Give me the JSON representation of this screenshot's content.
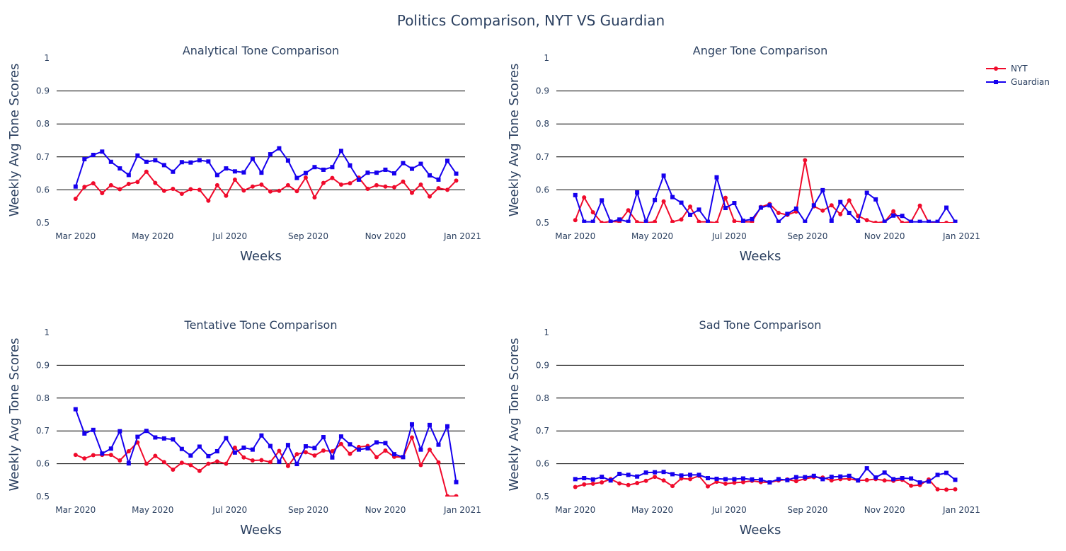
{
  "title": "Politics Comparison, NYT VS Guardian",
  "legend": [
    {
      "name": "NYT",
      "color": "#f00a2b",
      "marker": "circle"
    },
    {
      "name": "Guardian",
      "color": "#1600ee",
      "marker": "square"
    }
  ],
  "chart_data": [
    {
      "type": "line",
      "title": "Analytical Tone Comparison",
      "xlabel": "Weeks",
      "ylabel": "Weekly Avg Tone Scores",
      "ylim": [
        0.5,
        1
      ],
      "yticks": [
        "0.5",
        "0.6",
        "0.7",
        "0.8",
        "0.9",
        "1"
      ],
      "xticks": [
        "Mar 2020",
        "May 2020",
        "Jul 2020",
        "Sep 2020",
        "Nov 2020",
        "Jan 2021"
      ],
      "x": [
        "2020-03-01",
        "2020-03-08",
        "2020-03-15",
        "2020-03-22",
        "2020-03-29",
        "2020-04-05",
        "2020-04-12",
        "2020-04-19",
        "2020-04-26",
        "2020-05-03",
        "2020-05-10",
        "2020-05-17",
        "2020-05-24",
        "2020-05-31",
        "2020-06-07",
        "2020-06-14",
        "2020-06-21",
        "2020-06-28",
        "2020-07-05",
        "2020-07-12",
        "2020-07-19",
        "2020-07-26",
        "2020-08-02",
        "2020-08-09",
        "2020-08-16",
        "2020-08-23",
        "2020-08-30",
        "2020-09-06",
        "2020-09-13",
        "2020-09-20",
        "2020-09-27",
        "2020-10-04",
        "2020-10-11",
        "2020-10-18",
        "2020-10-25",
        "2020-11-01",
        "2020-11-08",
        "2020-11-15",
        "2020-11-22",
        "2020-11-29",
        "2020-12-06",
        "2020-12-13",
        "2020-12-20",
        "2020-12-27"
      ],
      "series": [
        {
          "name": "NYT",
          "values": [
            0.573,
            0.609,
            0.62,
            0.59,
            0.614,
            0.602,
            0.618,
            0.624,
            0.655,
            0.621,
            0.597,
            0.603,
            0.588,
            0.602,
            0.6,
            0.567,
            0.614,
            0.582,
            0.631,
            0.598,
            0.61,
            0.616,
            0.595,
            0.597,
            0.614,
            0.596,
            0.637,
            0.577,
            0.621,
            0.636,
            0.616,
            0.62,
            0.637,
            0.603,
            0.614,
            0.61,
            0.608,
            0.625,
            0.591,
            0.616,
            0.58,
            0.605,
            0.6,
            0.628
          ]
        },
        {
          "name": "Guardian",
          "values": [
            0.61,
            0.693,
            0.706,
            0.716,
            0.685,
            0.665,
            0.645,
            0.704,
            0.685,
            0.69,
            0.675,
            0.655,
            0.684,
            0.683,
            0.69,
            0.686,
            0.645,
            0.665,
            0.656,
            0.653,
            0.694,
            0.652,
            0.708,
            0.726,
            0.689,
            0.636,
            0.651,
            0.669,
            0.661,
            0.669,
            0.718,
            0.674,
            0.631,
            0.652,
            0.652,
            0.661,
            0.65,
            0.681,
            0.664,
            0.679,
            0.644,
            0.631,
            0.688,
            0.649
          ]
        }
      ]
    },
    {
      "type": "line",
      "title": "Anger Tone Comparison",
      "xlabel": "Weeks",
      "ylabel": "Weekly Avg Tone Scores",
      "ylim": [
        0.5,
        1
      ],
      "yticks": [
        "0.5",
        "0.6",
        "0.7",
        "0.8",
        "0.9",
        "1"
      ],
      "xticks": [
        "Mar 2020",
        "May 2020",
        "Jul 2020",
        "Sep 2020",
        "Nov 2020",
        "Jan 2021"
      ],
      "x": [
        "2020-03-01",
        "2020-03-08",
        "2020-03-15",
        "2020-03-22",
        "2020-03-29",
        "2020-04-05",
        "2020-04-12",
        "2020-04-19",
        "2020-04-26",
        "2020-05-03",
        "2020-05-10",
        "2020-05-17",
        "2020-05-24",
        "2020-05-31",
        "2020-06-07",
        "2020-06-14",
        "2020-06-21",
        "2020-06-28",
        "2020-07-05",
        "2020-07-12",
        "2020-07-19",
        "2020-07-26",
        "2020-08-02",
        "2020-08-09",
        "2020-08-16",
        "2020-08-23",
        "2020-08-30",
        "2020-09-06",
        "2020-09-13",
        "2020-09-20",
        "2020-09-27",
        "2020-10-04",
        "2020-10-11",
        "2020-10-18",
        "2020-10-25",
        "2020-11-01",
        "2020-11-08",
        "2020-11-15",
        "2020-11-22",
        "2020-11-29",
        "2020-12-06",
        "2020-12-13",
        "2020-12-20",
        "2020-12-27"
      ],
      "series": [
        {
          "name": "NYT",
          "values": [
            0.508,
            0.577,
            0.532,
            0.5,
            0.504,
            0.503,
            0.538,
            0.502,
            0.5,
            0.503,
            0.565,
            0.503,
            0.51,
            0.549,
            0.503,
            0.503,
            0.5,
            0.576,
            0.505,
            0.503,
            0.503,
            0.548,
            0.557,
            0.53,
            0.524,
            0.534,
            0.69,
            0.55,
            0.537,
            0.553,
            0.526,
            0.568,
            0.521,
            0.508,
            0.5,
            0.503,
            0.535,
            0.5,
            0.503,
            0.552,
            0.5,
            0.5,
            0.5,
            0.5
          ]
        },
        {
          "name": "Guardian",
          "values": [
            0.584,
            0.503,
            0.503,
            0.568,
            0.503,
            0.51,
            0.503,
            0.592,
            0.503,
            0.569,
            0.643,
            0.578,
            0.561,
            0.524,
            0.54,
            0.503,
            0.638,
            0.545,
            0.56,
            0.506,
            0.511,
            0.546,
            0.553,
            0.503,
            0.527,
            0.543,
            0.503,
            0.553,
            0.599,
            0.506,
            0.563,
            0.53,
            0.503,
            0.591,
            0.571,
            0.503,
            0.522,
            0.521,
            0.503,
            0.503,
            0.503,
            0.503,
            0.546,
            0.503
          ]
        }
      ]
    },
    {
      "type": "line",
      "title": "Tentative Tone Comparison",
      "xlabel": "Weeks",
      "ylabel": "Weekly Avg Tone Scores",
      "ylim": [
        0.5,
        1
      ],
      "yticks": [
        "0.5",
        "0.6",
        "0.7",
        "0.8",
        "0.9",
        "1"
      ],
      "xticks": [
        "Mar 2020",
        "May 2020",
        "Jul 2020",
        "Sep 2020",
        "Nov 2020",
        "Jan 2021"
      ],
      "x": [
        "2020-03-01",
        "2020-03-08",
        "2020-03-15",
        "2020-03-22",
        "2020-03-29",
        "2020-04-05",
        "2020-04-12",
        "2020-04-19",
        "2020-04-26",
        "2020-05-03",
        "2020-05-10",
        "2020-05-17",
        "2020-05-24",
        "2020-05-31",
        "2020-06-07",
        "2020-06-14",
        "2020-06-21",
        "2020-06-28",
        "2020-07-05",
        "2020-07-12",
        "2020-07-19",
        "2020-07-26",
        "2020-08-02",
        "2020-08-09",
        "2020-08-16",
        "2020-08-23",
        "2020-08-30",
        "2020-09-06",
        "2020-09-13",
        "2020-09-20",
        "2020-09-27",
        "2020-10-04",
        "2020-10-11",
        "2020-10-18",
        "2020-10-25",
        "2020-11-01",
        "2020-11-08",
        "2020-11-15",
        "2020-11-22",
        "2020-11-29",
        "2020-12-06",
        "2020-12-13",
        "2020-12-20",
        "2020-12-27"
      ],
      "series": [
        {
          "name": "NYT",
          "values": [
            0.627,
            0.616,
            0.626,
            0.627,
            0.627,
            0.61,
            0.638,
            0.665,
            0.6,
            0.624,
            0.605,
            0.582,
            0.603,
            0.596,
            0.578,
            0.6,
            0.607,
            0.6,
            0.649,
            0.619,
            0.61,
            0.611,
            0.605,
            0.639,
            0.593,
            0.629,
            0.635,
            0.625,
            0.64,
            0.638,
            0.66,
            0.63,
            0.651,
            0.654,
            0.62,
            0.64,
            0.621,
            0.62,
            0.68,
            0.596,
            0.643,
            0.604,
            0.501,
            0.501
          ]
        },
        {
          "name": "Guardian",
          "values": [
            0.766,
            0.692,
            0.703,
            0.631,
            0.646,
            0.699,
            0.601,
            0.682,
            0.7,
            0.68,
            0.677,
            0.674,
            0.645,
            0.625,
            0.652,
            0.623,
            0.638,
            0.678,
            0.634,
            0.649,
            0.643,
            0.686,
            0.654,
            0.606,
            0.657,
            0.599,
            0.653,
            0.648,
            0.681,
            0.619,
            0.683,
            0.659,
            0.643,
            0.647,
            0.665,
            0.663,
            0.629,
            0.62,
            0.72,
            0.643,
            0.718,
            0.658,
            0.714,
            0.544
          ]
        }
      ]
    },
    {
      "type": "line",
      "title": "Sad Tone Comparison",
      "xlabel": "Weeks",
      "ylabel": "Weekly Avg Tone Scores",
      "ylim": [
        0.5,
        1
      ],
      "yticks": [
        "0.5",
        "0.6",
        "0.7",
        "0.8",
        "0.9",
        "1"
      ],
      "xticks": [
        "Mar 2020",
        "May 2020",
        "Jul 2020",
        "Sep 2020",
        "Nov 2020",
        "Jan 2021"
      ],
      "x": [
        "2020-03-01",
        "2020-03-08",
        "2020-03-15",
        "2020-03-22",
        "2020-03-29",
        "2020-04-05",
        "2020-04-12",
        "2020-04-19",
        "2020-04-26",
        "2020-05-03",
        "2020-05-10",
        "2020-05-17",
        "2020-05-24",
        "2020-05-31",
        "2020-06-07",
        "2020-06-14",
        "2020-06-21",
        "2020-06-28",
        "2020-07-05",
        "2020-07-12",
        "2020-07-19",
        "2020-07-26",
        "2020-08-02",
        "2020-08-09",
        "2020-08-16",
        "2020-08-23",
        "2020-08-30",
        "2020-09-06",
        "2020-09-13",
        "2020-09-20",
        "2020-09-27",
        "2020-10-04",
        "2020-10-11",
        "2020-10-18",
        "2020-10-25",
        "2020-11-01",
        "2020-11-08",
        "2020-11-15",
        "2020-11-22",
        "2020-11-29",
        "2020-12-06",
        "2020-12-13",
        "2020-12-20",
        "2020-12-27"
      ],
      "series": [
        {
          "name": "NYT",
          "values": [
            0.529,
            0.537,
            0.539,
            0.543,
            0.553,
            0.54,
            0.535,
            0.541,
            0.548,
            0.56,
            0.549,
            0.532,
            0.555,
            0.553,
            0.563,
            0.531,
            0.545,
            0.539,
            0.542,
            0.544,
            0.548,
            0.544,
            0.543,
            0.549,
            0.552,
            0.547,
            0.554,
            0.559,
            0.558,
            0.549,
            0.553,
            0.554,
            0.549,
            0.55,
            0.553,
            0.549,
            0.548,
            0.551,
            0.533,
            0.535,
            0.552,
            0.522,
            0.521,
            0.522
          ]
        },
        {
          "name": "Guardian",
          "values": [
            0.553,
            0.556,
            0.552,
            0.56,
            0.549,
            0.569,
            0.566,
            0.561,
            0.573,
            0.574,
            0.575,
            0.568,
            0.564,
            0.566,
            0.566,
            0.556,
            0.554,
            0.553,
            0.553,
            0.555,
            0.552,
            0.551,
            0.543,
            0.553,
            0.55,
            0.559,
            0.559,
            0.563,
            0.553,
            0.56,
            0.561,
            0.563,
            0.549,
            0.586,
            0.558,
            0.573,
            0.553,
            0.556,
            0.555,
            0.543,
            0.546,
            0.566,
            0.572,
            0.551
          ]
        }
      ]
    }
  ]
}
